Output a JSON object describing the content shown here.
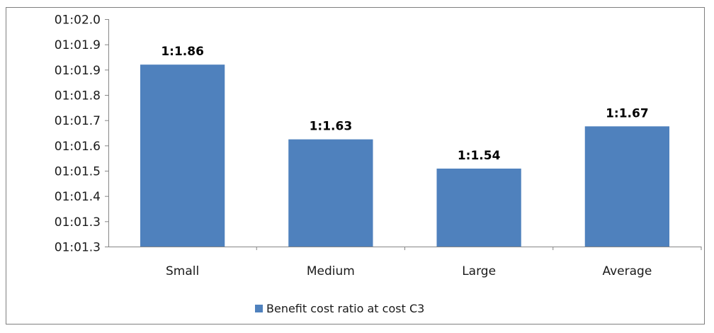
{
  "colors": {
    "bar": "#4f81bd",
    "axis": "#868686",
    "border": "#7f7f7f",
    "text": "#1a1a1a"
  },
  "chart_data": {
    "type": "bar",
    "title": "",
    "xlabel": "",
    "ylabel": "",
    "categories": [
      "Small",
      "Medium",
      "Large",
      "Average"
    ],
    "series": [
      {
        "name": "Benefit cost ratio at cost C3",
        "values": [
          1.86,
          1.63,
          1.54,
          1.67
        ],
        "data_labels": [
          "1:1.86",
          "1:1.63",
          "1:1.54",
          "1:1.67"
        ]
      }
    ],
    "y_tick_labels": [
      "01:02.0",
      "01:01.9",
      "01:01.9",
      "01:01.8",
      "01:01.7",
      "01:01.6",
      "01:01.5",
      "01:01.4",
      "01:01.3",
      "01:01.3"
    ],
    "ylim": [
      1.3,
      2.0
    ],
    "grid": false,
    "legend_position": "bottom"
  }
}
